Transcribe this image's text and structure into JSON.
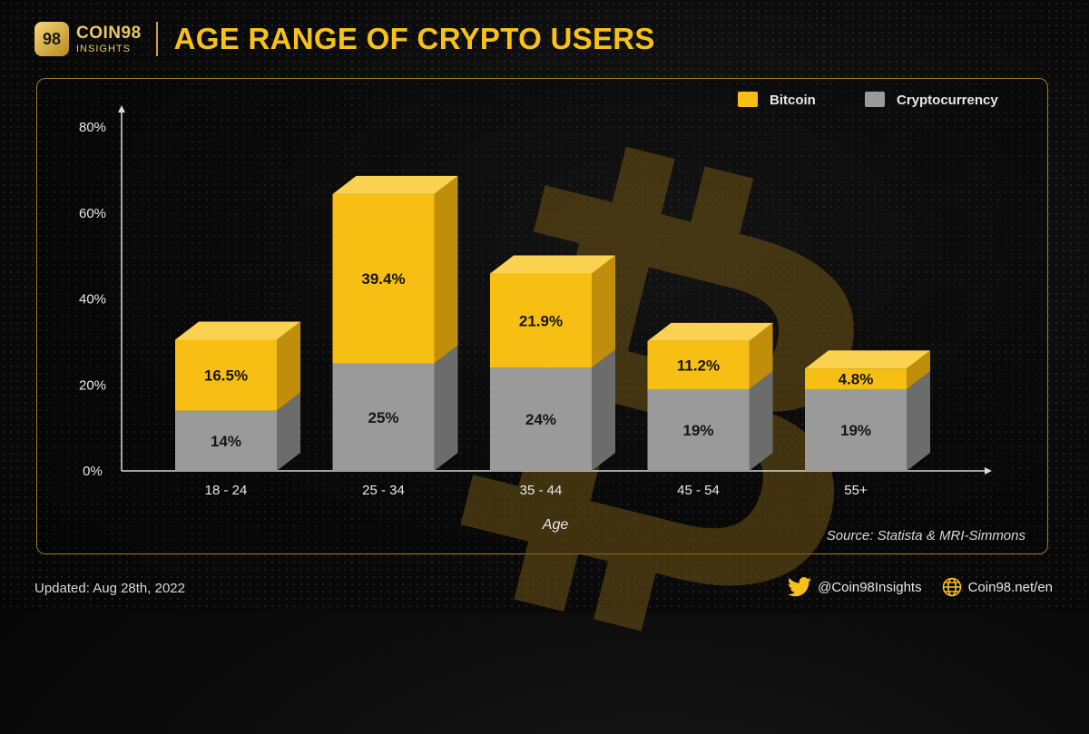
{
  "brand": {
    "logo_mark": "98",
    "name": "COIN98",
    "sub": "INSIGHTS"
  },
  "title": "AGE RANGE OF CRYPTO USERS",
  "chart_data": {
    "type": "bar",
    "stacked": true,
    "categories": [
      "18 - 24",
      "25 - 34",
      "35 - 44",
      "45 - 54",
      "55+"
    ],
    "series": [
      {
        "name": "Cryptocurrency",
        "values": [
          14,
          25,
          24,
          19,
          19
        ],
        "labels": [
          "14%",
          "25%",
          "24%",
          "19%",
          "19%"
        ],
        "color": "#9a9a9a"
      },
      {
        "name": "Bitcoin",
        "values": [
          16.5,
          39.4,
          21.9,
          11.2,
          4.8
        ],
        "labels": [
          "16.5%",
          "39.4%",
          "21.9%",
          "11.2%",
          "4.8%"
        ],
        "color": "#f7c11a"
      }
    ],
    "xlabel": "Age",
    "ylabel": "",
    "ylim": [
      0,
      80
    ],
    "yticks": [
      "0%",
      "20%",
      "40%",
      "60%",
      "80%"
    ],
    "legend": "top-right",
    "grid": false
  },
  "source": "Source: Statista & MRI-Simmons",
  "footer": {
    "updated": "Updated: Aug 28th, 2022",
    "twitter": "@Coin98Insights",
    "website": "Coin98.net/en"
  },
  "colors": {
    "accent": "#f7c11a",
    "grey": "#9a9a9a",
    "frame": "#9c7d28"
  }
}
